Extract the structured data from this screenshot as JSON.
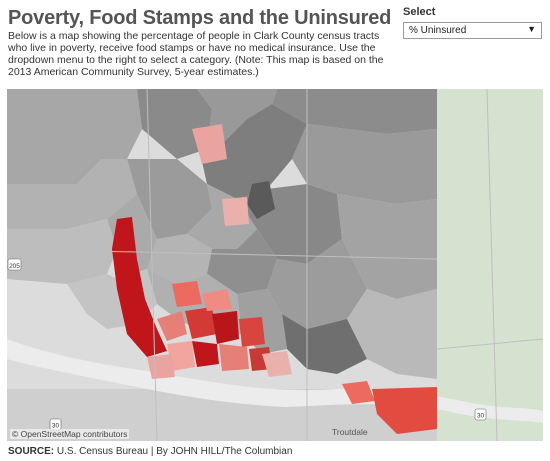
{
  "title": "Poverty, Food Stamps and the Uninsured",
  "description": "Below is a map showing the percentage of people in Clark County census tracts who live in poverty, receive food stamps or have no medical insurance. Use the dropdown menu to the right to select a category. (Note: This map is based on the 2013 American Community Survey, 5-year estimates.)",
  "selector": {
    "label": "Select",
    "value": "% Uninsured"
  },
  "map": {
    "attribution": "© OpenStreetMap contributors",
    "place_labels": [
      "Troutdale"
    ],
    "route_shields": [
      "205",
      "30",
      "30"
    ]
  },
  "footer": {
    "source_label": "SOURCE:",
    "source_text": "U.S. Census Bureau | By JOHN HILL/The Columbian"
  },
  "colors": {
    "title": "#555555",
    "gray_light": "#c8c8c8",
    "gray_mid": "#a6a6a6",
    "gray_dark": "#7d7d7d",
    "red_light": "#e9a4a0",
    "red_mid": "#ec6a60",
    "red_dark": "#c0151b",
    "river": "#e8e8e8",
    "forest": "#d5e2cf"
  }
}
